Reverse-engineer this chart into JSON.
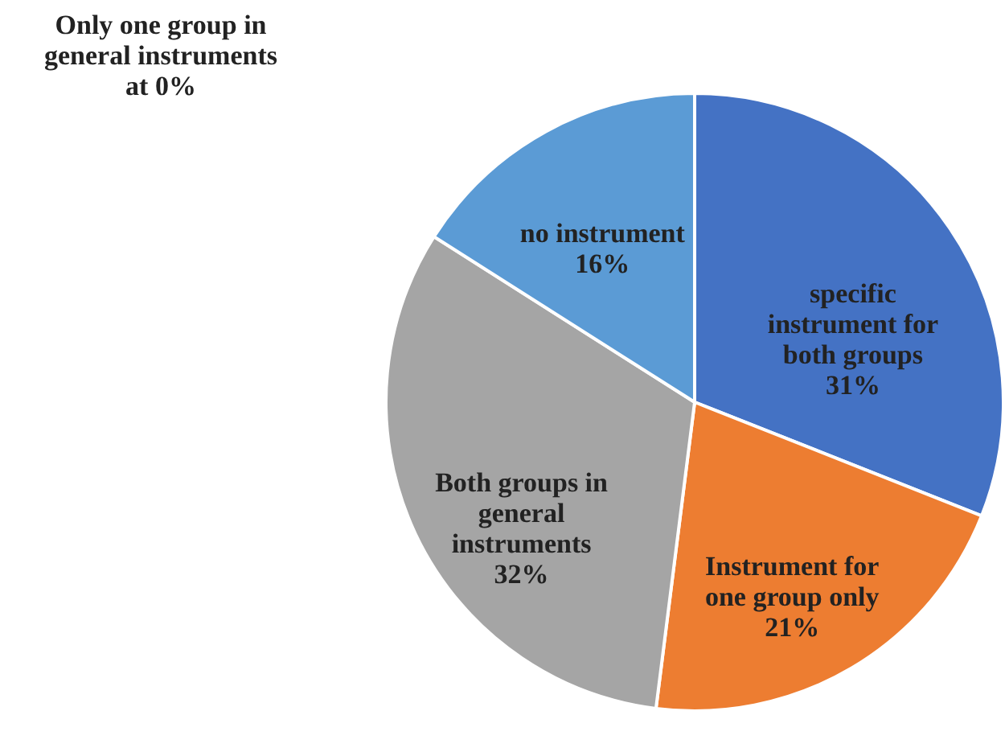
{
  "chart_data": {
    "type": "pie",
    "categories": [
      "specific instrument for both groups",
      "Instrument for one group only",
      "Both groups in general instruments",
      "no instrument",
      "Only one group in general instruments"
    ],
    "values": [
      31,
      21,
      32,
      16,
      0
    ],
    "colors": [
      "#4472c4",
      "#ed7d31",
      "#a5a5a5",
      "#5b9bd5",
      "#ffffff"
    ],
    "value_labels": [
      "31%",
      "21%",
      "32%",
      "16%",
      "at 0%"
    ]
  }
}
